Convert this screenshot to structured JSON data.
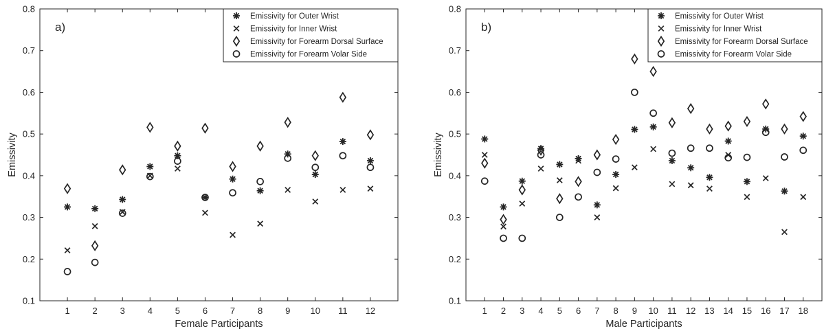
{
  "chart_data": [
    {
      "type": "scatter",
      "panel_label": "a)",
      "xlabel": "Female Participants",
      "ylabel": "Emissivity",
      "x_ticks": [
        1,
        2,
        3,
        4,
        5,
        6,
        7,
        8,
        9,
        10,
        11,
        12
      ],
      "xlim": [
        0,
        13
      ],
      "ylim": [
        0.1,
        0.8
      ],
      "y_ticks": [
        "0.1",
        "0.2",
        "0.3",
        "0.4",
        "0.5",
        "0.6",
        "0.7",
        "0.8"
      ],
      "grid": false,
      "legend_position": "top-right",
      "series": [
        {
          "name": "Emissivity for Outer Wrist",
          "marker": "asterisk",
          "values": [
            0.325,
            0.321,
            0.343,
            0.422,
            0.448,
            0.348,
            0.392,
            0.364,
            0.452,
            0.403,
            0.482,
            0.436
          ]
        },
        {
          "name": "Emissivity for Inner Wrist",
          "marker": "cross",
          "values": [
            0.221,
            0.279,
            0.313,
            0.4,
            0.417,
            0.311,
            0.258,
            0.285,
            0.366,
            0.338,
            0.366,
            0.369
          ]
        },
        {
          "name": "Emissivity for Forearm Dorsal Surface",
          "marker": "diamond",
          "values": [
            0.369,
            0.232,
            0.414,
            0.516,
            0.471,
            0.514,
            0.422,
            0.471,
            0.528,
            0.448,
            0.588,
            0.498
          ]
        },
        {
          "name": "Emissivity for Forearm Volar Side",
          "marker": "circle",
          "values": [
            0.17,
            0.192,
            0.31,
            0.398,
            0.435,
            0.348,
            0.359,
            0.386,
            0.442,
            0.42,
            0.448,
            0.42
          ]
        }
      ]
    },
    {
      "type": "scatter",
      "panel_label": "b)",
      "xlabel": "Male Participants",
      "ylabel": "Emissivity",
      "x_ticks": [
        1,
        2,
        3,
        4,
        5,
        6,
        7,
        8,
        9,
        10,
        11,
        12,
        13,
        14,
        15,
        16,
        17,
        18
      ],
      "xlim": [
        0,
        19
      ],
      "ylim": [
        0.1,
        0.8
      ],
      "y_ticks": [
        "0.1",
        "0.2",
        "0.3",
        "0.4",
        "0.5",
        "0.6",
        "0.7",
        "0.8"
      ],
      "grid": false,
      "legend_position": "top-right",
      "series": [
        {
          "name": "Emissivity for Outer Wrist",
          "marker": "asterisk",
          "values": [
            0.488,
            0.325,
            0.387,
            0.465,
            0.427,
            0.441,
            0.33,
            0.403,
            0.511,
            0.517,
            0.436,
            0.419,
            0.396,
            0.483,
            0.386,
            0.512,
            0.363,
            0.495
          ]
        },
        {
          "name": "Emissivity for Inner Wrist",
          "marker": "cross",
          "values": [
            0.45,
            0.278,
            0.333,
            0.417,
            0.389,
            0.436,
            0.3,
            0.37,
            0.42,
            0.464,
            0.38,
            0.377,
            0.369,
            0.45,
            0.349,
            0.394,
            0.265,
            0.349
          ]
        },
        {
          "name": "Emissivity for Forearm Dorsal Surface",
          "marker": "diamond",
          "values": [
            0.43,
            0.295,
            0.366,
            0.461,
            0.345,
            0.386,
            0.45,
            0.487,
            0.68,
            0.65,
            0.527,
            0.561,
            0.512,
            0.519,
            0.53,
            0.572,
            0.512,
            0.542
          ]
        },
        {
          "name": "Emissivity for Forearm Volar Side",
          "marker": "circle",
          "values": [
            0.387,
            0.25,
            0.25,
            0.45,
            0.3,
            0.349,
            0.408,
            0.44,
            0.6,
            0.55,
            0.454,
            0.466,
            0.466,
            0.443,
            0.444,
            0.504,
            0.445,
            0.461
          ]
        }
      ]
    }
  ]
}
